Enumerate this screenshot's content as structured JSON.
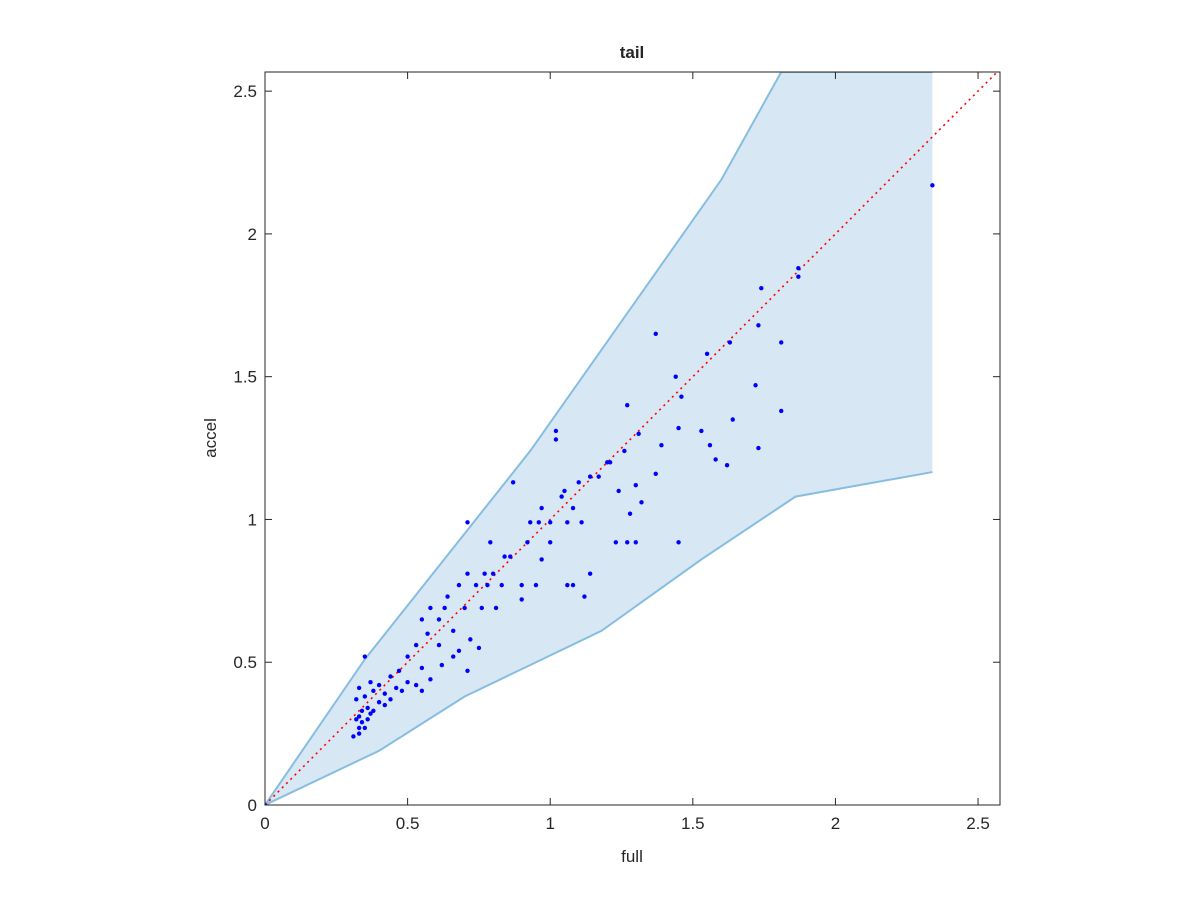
{
  "chart_data": {
    "type": "scatter",
    "title": "tail",
    "xlabel": "full",
    "ylabel": "accel",
    "xlim": [
      0,
      2.577
    ],
    "ylim": [
      0,
      2.567
    ],
    "xticks": [
      0,
      0.5,
      1,
      1.5,
      2,
      2.5
    ],
    "yticks": [
      0,
      0.5,
      1,
      1.5,
      2,
      2.5
    ],
    "band": {
      "fill": "#d7e7f3",
      "edge": "#86bde0",
      "upper_x": [
        0,
        0.35,
        0.93,
        1.6,
        1.81,
        2.34
      ],
      "upper_y": [
        0,
        0.51,
        1.24,
        2.19,
        2.567,
        2.567
      ],
      "lower_x": [
        0,
        0.4,
        0.7,
        1.18,
        1.53,
        1.86,
        2.34
      ],
      "lower_y": [
        0,
        0.19,
        0.38,
        0.61,
        0.86,
        1.08,
        1.166
      ]
    },
    "reference_line": {
      "color": "#ff0000",
      "x": [
        0,
        2.6
      ],
      "y": [
        0,
        2.6
      ]
    },
    "series": [
      {
        "color": "#0000ff",
        "x": [
          2.34,
          1.87,
          1.87,
          1.74,
          1.73,
          1.63,
          1.81,
          1.55,
          1.37,
          1.44,
          1.46,
          1.72,
          1.81,
          1.64,
          1.27,
          1.53,
          1.45,
          1.56,
          1.73,
          1.58,
          1.62,
          1.37,
          1.39,
          1.31,
          1.02,
          1.02,
          1.26,
          1.2,
          1.21,
          1.32,
          1.3,
          1.24,
          1.14,
          1.1,
          1.17,
          1.05,
          1.04,
          1.08,
          0.97,
          0.87,
          0.71,
          0.93,
          0.96,
          1.0,
          1.06,
          1.11,
          1.28,
          1.23,
          1.27,
          1.3,
          1.45,
          1.12,
          1.14,
          1.06,
          1.08,
          0.92,
          0.97,
          1.0,
          0.84,
          0.86,
          0.79,
          0.8,
          0.77,
          0.74,
          0.78,
          0.83,
          0.9,
          0.95,
          0.9,
          0.71,
          0.68,
          0.64,
          0.7,
          0.76,
          0.81,
          0.63,
          0.58,
          0.55,
          0.61,
          0.66,
          0.72,
          0.75,
          0.57,
          0.53,
          0.61,
          0.66,
          0.71,
          0.68,
          0.5,
          0.55,
          0.62,
          0.58,
          0.47,
          0.44,
          0.5,
          0.53,
          0.55,
          0.46,
          0.48,
          0.4,
          0.42,
          0.44,
          0.37,
          0.35,
          0.38,
          0.4,
          0.42,
          0.35,
          0.36,
          0.38,
          0.33,
          0.32,
          0.34,
          0.33,
          0.34,
          0.36,
          0.35,
          0.33,
          0.31,
          0.33,
          0.37,
          0.32,
          0.0
        ],
        "values": [
          2.17,
          1.88,
          1.85,
          1.81,
          1.68,
          1.62,
          1.62,
          1.58,
          1.65,
          1.5,
          1.43,
          1.47,
          1.38,
          1.35,
          1.4,
          1.31,
          1.32,
          1.26,
          1.25,
          1.21,
          1.19,
          1.16,
          1.26,
          1.3,
          1.31,
          1.28,
          1.24,
          1.2,
          1.2,
          1.06,
          1.12,
          1.1,
          1.15,
          1.13,
          1.15,
          1.1,
          1.08,
          1.04,
          1.04,
          1.13,
          0.99,
          0.99,
          0.99,
          0.99,
          0.99,
          0.99,
          1.02,
          0.92,
          0.92,
          0.92,
          0.92,
          0.73,
          0.81,
          0.77,
          0.77,
          0.92,
          0.86,
          0.92,
          0.87,
          0.87,
          0.92,
          0.81,
          0.81,
          0.77,
          0.77,
          0.77,
          0.77,
          0.77,
          0.72,
          0.81,
          0.77,
          0.73,
          0.69,
          0.69,
          0.69,
          0.69,
          0.69,
          0.65,
          0.65,
          0.61,
          0.58,
          0.55,
          0.6,
          0.56,
          0.56,
          0.52,
          0.47,
          0.54,
          0.52,
          0.48,
          0.49,
          0.44,
          0.47,
          0.45,
          0.43,
          0.42,
          0.4,
          0.41,
          0.4,
          0.42,
          0.39,
          0.37,
          0.43,
          0.52,
          0.4,
          0.36,
          0.35,
          0.38,
          0.34,
          0.33,
          0.41,
          0.37,
          0.33,
          0.31,
          0.29,
          0.3,
          0.27,
          0.27,
          0.24,
          0.25,
          0.32,
          0.3,
          0.0
        ]
      }
    ]
  }
}
